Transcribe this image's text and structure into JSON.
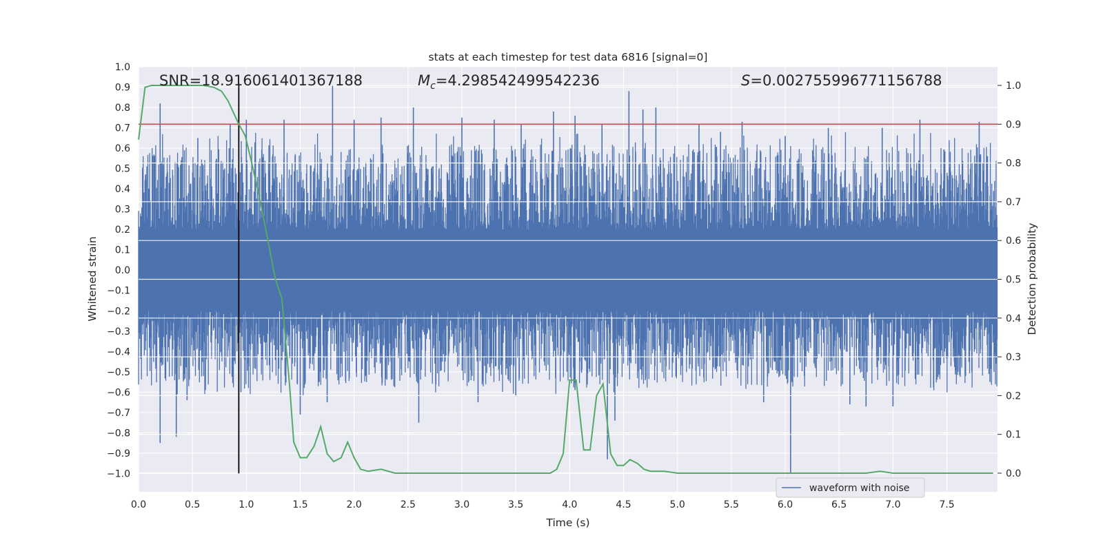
{
  "chart_data": {
    "type": "line",
    "title": "stats at each timestep for test data 6816 [signal=0]",
    "xlabel": "Time (s)",
    "ylabel_left": "Whitened strain",
    "ylabel_right": "Detection probability",
    "xlim": [
      0,
      7.97
    ],
    "ylim_left": [
      -1.09,
      1.0
    ],
    "ylim_right": [
      -0.048,
      1.048
    ],
    "x_ticks": [
      "0.0",
      "0.5",
      "1.0",
      "1.5",
      "2.0",
      "2.5",
      "3.0",
      "3.5",
      "4.0",
      "4.5",
      "5.0",
      "5.5",
      "6.0",
      "6.5",
      "7.0",
      "7.5"
    ],
    "y_ticks_left": [
      "1.0",
      "0.9",
      "0.8",
      "0.7",
      "0.6",
      "0.5",
      "0.4",
      "0.3",
      "0.2",
      "0.1",
      "0.0",
      "-0.1",
      "-0.2",
      "-0.3",
      "-0.4",
      "-0.5",
      "-0.6",
      "-0.7",
      "-0.8",
      "-0.9",
      "-1.0"
    ],
    "y_ticks_right": [
      "1.0",
      "0.9",
      "0.8",
      "0.7",
      "0.6",
      "0.5",
      "0.4",
      "0.3",
      "0.2",
      "0.1",
      "0.0"
    ],
    "grid": true,
    "annotations": {
      "snr": "SNR=18.916061401367188",
      "mc_symbol": "M",
      "mc_sub": "c",
      "mc_value": "=4.298542499542236",
      "s_symbol": "S",
      "s_value": "=0.002755996771156788"
    },
    "threshold_line": {
      "axis": "right",
      "y": 0.9,
      "color": "#c44e52"
    },
    "vertical_line": {
      "x": 0.93,
      "y_range": [
        -1.0,
        0.92
      ],
      "color": "#000000"
    },
    "legend": {
      "entries": [
        "waveform with noise"
      ],
      "location": "lower-right"
    },
    "waveform_spikes_up": [
      [
        0.2,
        0.82
      ],
      [
        0.55,
        0.65
      ],
      [
        0.85,
        0.72
      ],
      [
        1.0,
        0.74
      ],
      [
        1.35,
        0.74
      ],
      [
        1.8,
        0.91
      ],
      [
        2.0,
        0.74
      ],
      [
        2.25,
        0.75
      ],
      [
        2.55,
        0.8
      ],
      [
        3.0,
        0.75
      ],
      [
        3.3,
        0.74
      ],
      [
        3.55,
        0.72
      ],
      [
        3.85,
        0.78
      ],
      [
        4.05,
        0.76
      ],
      [
        4.3,
        0.72
      ],
      [
        4.55,
        0.88
      ],
      [
        4.68,
        0.79
      ],
      [
        4.8,
        0.8
      ],
      [
        5.2,
        0.72
      ],
      [
        5.4,
        0.68
      ],
      [
        5.6,
        0.73
      ],
      [
        6.0,
        0.66
      ],
      [
        6.4,
        0.7
      ],
      [
        6.9,
        0.7
      ],
      [
        7.25,
        0.74
      ],
      [
        7.8,
        0.73
      ]
    ],
    "waveform_spikes_down": [
      [
        0.2,
        -0.85
      ],
      [
        0.35,
        -0.82
      ],
      [
        0.45,
        -0.64
      ],
      [
        0.95,
        -0.6
      ],
      [
        1.5,
        -0.71
      ],
      [
        1.75,
        -0.65
      ],
      [
        2.6,
        -0.75
      ],
      [
        3.15,
        -0.65
      ],
      [
        3.5,
        -0.62
      ],
      [
        4.05,
        -0.59
      ],
      [
        4.35,
        -0.93
      ],
      [
        4.42,
        -0.74
      ],
      [
        5.8,
        -0.65
      ],
      [
        6.05,
        -1.0
      ],
      [
        6.6,
        -0.66
      ],
      [
        6.75,
        -0.67
      ],
      [
        7.0,
        -0.67
      ],
      [
        7.9,
        -0.55
      ]
    ],
    "series": [
      {
        "name": "detection probability",
        "axis": "right",
        "color": "#55a868",
        "x": [
          0.0,
          0.06,
          0.12,
          0.2,
          0.3,
          0.4,
          0.5,
          0.6,
          0.7,
          0.77,
          0.83,
          0.88,
          0.93,
          0.99,
          1.05,
          1.13,
          1.2,
          1.27,
          1.33,
          1.4,
          1.44,
          1.5,
          1.56,
          1.63,
          1.69,
          1.75,
          1.81,
          1.88,
          1.94,
          2.0,
          2.06,
          2.13,
          2.25,
          2.38,
          2.5,
          2.62,
          2.75,
          2.88,
          3.0,
          3.25,
          3.5,
          3.63,
          3.75,
          3.82,
          3.88,
          3.94,
          4.0,
          4.06,
          4.13,
          4.19,
          4.25,
          4.31,
          4.38,
          4.44,
          4.5,
          4.56,
          4.63,
          4.69,
          4.75,
          4.88,
          5.0,
          5.25,
          5.5,
          5.75,
          6.0,
          6.25,
          6.5,
          6.75,
          6.88,
          7.0,
          7.25,
          7.5,
          7.75,
          7.93
        ],
        "y": [
          0.86,
          0.995,
          1.0,
          1.0,
          1.0,
          1.0,
          1.0,
          1.0,
          0.995,
          0.985,
          0.96,
          0.93,
          0.9,
          0.87,
          0.8,
          0.7,
          0.6,
          0.5,
          0.45,
          0.23,
          0.08,
          0.04,
          0.04,
          0.07,
          0.12,
          0.05,
          0.03,
          0.04,
          0.08,
          0.04,
          0.01,
          0.005,
          0.01,
          0.0,
          0.0,
          0.0,
          0.0,
          0.0,
          0.0,
          0.0,
          0.0,
          0.0,
          0.0,
          0.0,
          0.01,
          0.05,
          0.24,
          0.24,
          0.06,
          0.06,
          0.2,
          0.23,
          0.05,
          0.02,
          0.02,
          0.035,
          0.025,
          0.01,
          0.005,
          0.005,
          0.0,
          0.0,
          0.0,
          0.0,
          0.0,
          0.0,
          0.0,
          0.0,
          0.005,
          0.0,
          0.0,
          0.0,
          0.0,
          0.0
        ]
      }
    ]
  }
}
